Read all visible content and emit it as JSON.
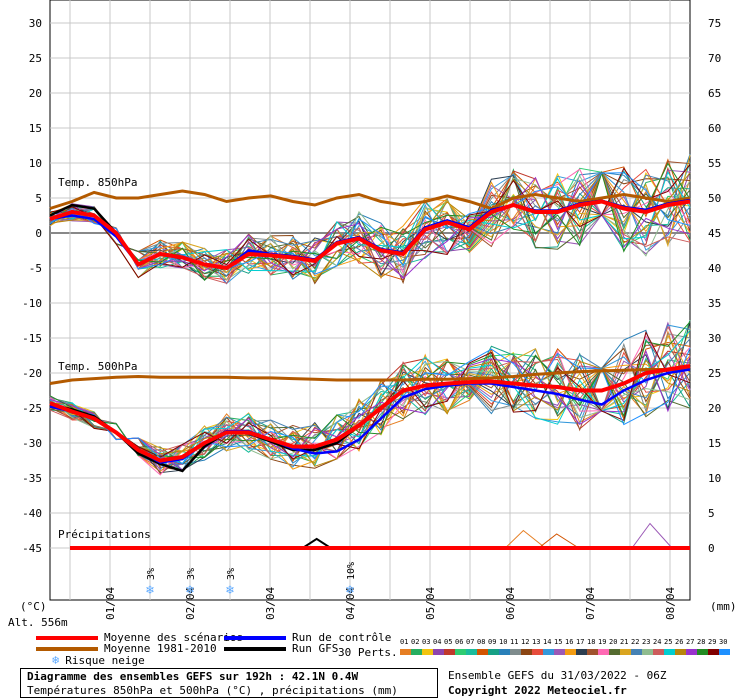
{
  "chart_data": {
    "type": "line",
    "left_axis": {
      "label": "(°C)",
      "ticks": [
        30,
        25,
        20,
        15,
        10,
        5,
        0,
        -5,
        -10,
        -15,
        -20,
        -25,
        -30,
        -35,
        -40,
        -45
      ]
    },
    "right_axis": {
      "label": "(mm)",
      "ticks": [
        75,
        70,
        65,
        60,
        55,
        50,
        45,
        40,
        35,
        30,
        25,
        20,
        15,
        10,
        5,
        0
      ]
    },
    "x_axis": {
      "unit": "hours",
      "range": [
        0,
        192
      ],
      "date_labels": [
        {
          "h": 18,
          "label": "01/04"
        },
        {
          "h": 42,
          "label": "02/04"
        },
        {
          "h": 66,
          "label": "03/04"
        },
        {
          "h": 90,
          "label": "04/04"
        },
        {
          "h": 114,
          "label": "05/04"
        },
        {
          "h": 138,
          "label": "06/04"
        },
        {
          "h": 162,
          "label": "07/04"
        },
        {
          "h": 186,
          "label": "08/04"
        }
      ]
    },
    "altitude_label": "Alt. 556m",
    "section_labels": {
      "t850": "Temp. 850hPa",
      "t500": "Temp. 500hPa",
      "precip": "Précipitations"
    },
    "t850": {
      "mean_scenarios": [
        2,
        3,
        2.5,
        0,
        -4.5,
        -3,
        -3.5,
        -4.5,
        -5,
        -3,
        -3.2,
        -3.5,
        -4,
        -1.5,
        -0.8,
        -2.5,
        -3,
        0.5,
        1.5,
        0.5,
        3,
        4,
        3,
        3,
        4,
        4.5,
        3.5,
        3,
        4,
        4.5
      ],
      "climate_mean": [
        3.5,
        4.5,
        5.8,
        5,
        5,
        5.5,
        6,
        5.5,
        4.5,
        5,
        5.3,
        4.5,
        4,
        5,
        5.5,
        4.5,
        4,
        4.5,
        5.3,
        4.5,
        3.5,
        5,
        5.5,
        5,
        4.5,
        5,
        5.5,
        5,
        4.5,
        5
      ],
      "control": [
        2,
        2.5,
        2,
        -0.5,
        -4.5,
        -3,
        -3.5,
        -4.5,
        -5,
        -2.5,
        -3,
        -3.3,
        -3.8,
        -1.3,
        -0.6,
        -2.3,
        -2.8,
        0.8,
        1.8,
        0.8,
        3.3,
        4,
        3.2,
        3.2,
        4.2,
        4.6,
        3.7,
        3.3,
        4.2,
        4.7
      ],
      "gfs": [
        2.5,
        4,
        3.5,
        0,
        -4.5,
        -3,
        -3.5,
        -4.5,
        -5,
        -2.5,
        -3,
        -3.3,
        -3.8,
        -1.3,
        -0.6,
        -2.3,
        -2.8,
        0.8,
        1.8,
        0.8,
        3.3,
        4,
        3.2,
        3.2,
        4.2,
        4.6,
        3.7,
        3.3,
        4.2,
        4.7
      ]
    },
    "t500": {
      "mean_scenarios": [
        -24.3,
        -25.5,
        -26.5,
        -28.5,
        -31,
        -32.5,
        -32,
        -30,
        -28.5,
        -28.5,
        -29.5,
        -30.5,
        -30.5,
        -29.5,
        -27.5,
        -25,
        -22.5,
        -21.8,
        -21.5,
        -21.3,
        -21.2,
        -21.5,
        -21.8,
        -22,
        -22.5,
        -22.5,
        -21.5,
        -20,
        -19.5,
        -19
      ],
      "climate_mean": [
        -21.5,
        -21,
        -20.8,
        -20.6,
        -20.5,
        -20.6,
        -20.6,
        -20.6,
        -20.6,
        -20.7,
        -20.7,
        -20.8,
        -20.9,
        -21,
        -21,
        -21,
        -21,
        -20.9,
        -20.9,
        -20.8,
        -20.7,
        -20.5,
        -20.2,
        -20,
        -19.8,
        -19.7,
        -19.6,
        -19.5,
        -19.5,
        -19.5
      ],
      "control": [
        -24.8,
        -25.5,
        -26.5,
        -28.5,
        -31,
        -32.8,
        -32.3,
        -30,
        -28.3,
        -28.3,
        -29.5,
        -30.8,
        -31.5,
        -31.2,
        -29.5,
        -26.5,
        -23.5,
        -22.3,
        -21.8,
        -21.5,
        -21.5,
        -22,
        -22.5,
        -23,
        -23.8,
        -24.5,
        -22.5,
        -21,
        -20,
        -19.5
      ],
      "gfs": [
        -24.5,
        -25.2,
        -26.2,
        -28.5,
        -31.5,
        -33,
        -34,
        -30.5,
        -28.5,
        -28.6,
        -29.8,
        -31,
        -31,
        -30,
        -27.5,
        -25,
        -22.5,
        -21.8,
        -21.5,
        -21.3,
        -21.2,
        -21.5,
        -21.8,
        -22,
        -22.5,
        -22.5,
        -21.5,
        -20,
        -19.5,
        -19
      ]
    },
    "precip": {
      "mean_scenarios": [
        0,
        0,
        0,
        0,
        0,
        0,
        0,
        0,
        0,
        0,
        0,
        0,
        0,
        0,
        0,
        0,
        0,
        0,
        0,
        0,
        0,
        0,
        0,
        0,
        0,
        0,
        0,
        0,
        0,
        0
      ],
      "gfs_peak": {
        "h": 80,
        "value": 1.3
      },
      "member_peaks": [
        {
          "h": 142,
          "value": 2.5
        },
        {
          "h": 152,
          "value": 2.0
        },
        {
          "h": 180,
          "value": 3.5
        }
      ]
    },
    "snow_markers": [
      {
        "h": 30,
        "label": "3%"
      },
      {
        "h": 42,
        "label": "3%"
      },
      {
        "h": 54,
        "label": "3%"
      },
      {
        "h": 90,
        "label": "10%"
      }
    ]
  },
  "legend": {
    "mean_scenarios": {
      "label": "Moyenne des scénarios",
      "color": "#ff0000"
    },
    "climate_mean": {
      "label": "Moyenne 1981-2010",
      "color": "#b35a00"
    },
    "snow_risk": {
      "label": "Risque neige",
      "color": "#5aa8ff"
    },
    "control": {
      "label": "Run de contrôle",
      "color": "#0000ff"
    },
    "gfs": {
      "label": "Run GFS",
      "color": "#000000"
    }
  },
  "perturbations": {
    "label": "30 Perts.",
    "numbers": [
      "01",
      "02",
      "03",
      "04",
      "05",
      "06",
      "07",
      "08",
      "09",
      "10",
      "11",
      "12",
      "13",
      "14",
      "15",
      "16",
      "17",
      "18",
      "19",
      "20",
      "21",
      "22",
      "23",
      "24",
      "25",
      "26",
      "27",
      "28",
      "29",
      "30"
    ],
    "colors": [
      "#e67e22",
      "#27ae60",
      "#f1c40f",
      "#8e44ad",
      "#c0392b",
      "#2ecc71",
      "#1abc9c",
      "#d35400",
      "#16a085",
      "#2980b9",
      "#7f8c8d",
      "#8b4513",
      "#e74c3c",
      "#3498db",
      "#9b59b6",
      "#f39c12",
      "#2c3e50",
      "#a0522d",
      "#ff69b4",
      "#556b2f",
      "#daa520",
      "#4682b4",
      "#8fbc8f",
      "#cd5c5c",
      "#00ced1",
      "#b8860b",
      "#9932cc",
      "#228b22",
      "#800000",
      "#1e90ff"
    ]
  },
  "footer": {
    "title": "Diagramme des ensembles GEFS sur 192h : 42.1N 0.4W",
    "subtitle": "Températures 850hPa et 500hPa (°C) , précipitations (mm)",
    "ensemble": "Ensemble GEFS du 31/03/2022 - 06Z",
    "copyright": "Copyright 2022 Meteociel.fr"
  }
}
